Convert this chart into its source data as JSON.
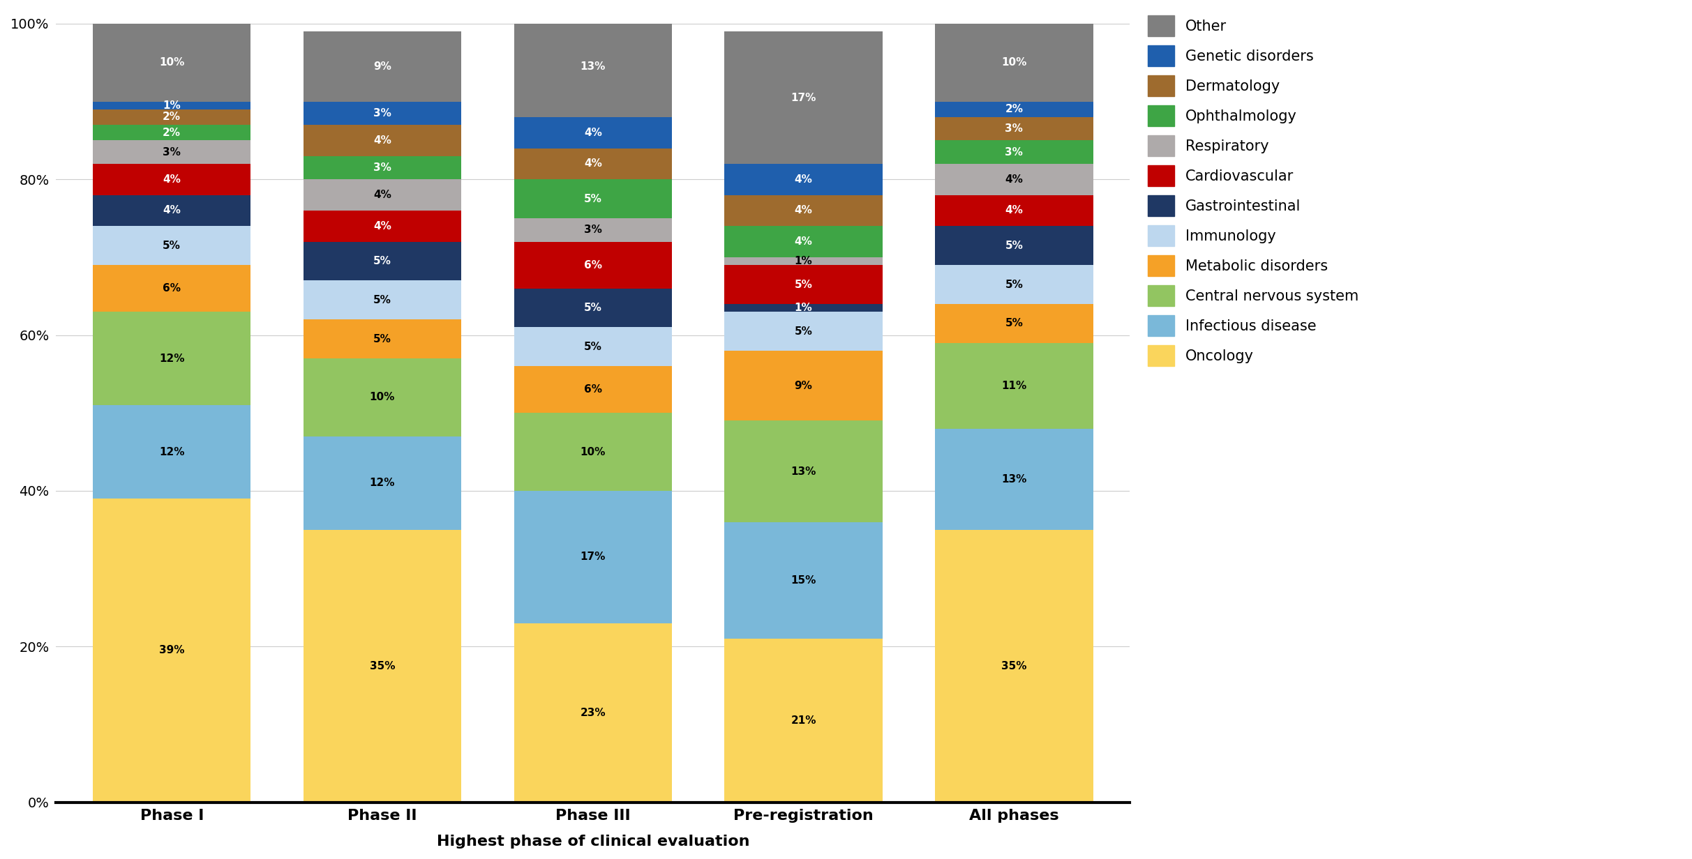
{
  "categories": [
    "Phase I",
    "Phase II",
    "Phase III",
    "Pre-registration",
    "All phases"
  ],
  "series": [
    {
      "label": "Oncology",
      "color": "#FAD55C",
      "values": [
        39,
        35,
        23,
        21,
        35
      ],
      "text_color": "#000000"
    },
    {
      "label": "Infectious disease",
      "color": "#7AB8D9",
      "values": [
        12,
        12,
        17,
        15,
        13
      ],
      "text_color": "#000000"
    },
    {
      "label": "Central nervous system",
      "color": "#92C561",
      "values": [
        12,
        10,
        10,
        13,
        11
      ],
      "text_color": "#000000"
    },
    {
      "label": "Metabolic disorders",
      "color": "#F5A127",
      "values": [
        6,
        5,
        6,
        9,
        5
      ],
      "text_color": "#000000"
    },
    {
      "label": "Immunology",
      "color": "#BDD7EE",
      "values": [
        5,
        5,
        5,
        5,
        5
      ],
      "text_color": "#000000"
    },
    {
      "label": "Gastrointestinal",
      "color": "#1F3864",
      "values": [
        4,
        5,
        5,
        1,
        5
      ],
      "text_color": "#FFFFFF"
    },
    {
      "label": "Cardiovascular",
      "color": "#C00000",
      "values": [
        4,
        4,
        6,
        5,
        4
      ],
      "text_color": "#FFFFFF"
    },
    {
      "label": "Respiratory",
      "color": "#AEAAAA",
      "values": [
        3,
        4,
        3,
        1,
        4
      ],
      "text_color": "#000000"
    },
    {
      "label": "Ophthalmology",
      "color": "#3EA545",
      "values": [
        2,
        3,
        5,
        4,
        3
      ],
      "text_color": "#FFFFFF"
    },
    {
      "label": "Dermatology",
      "color": "#9E6B2E",
      "values": [
        2,
        4,
        4,
        4,
        3
      ],
      "text_color": "#FFFFFF"
    },
    {
      "label": "Genetic disorders",
      "color": "#1F5FAD",
      "values": [
        1,
        3,
        4,
        4,
        2
      ],
      "text_color": "#FFFFFF"
    },
    {
      "label": "Other",
      "color": "#7F7F7F",
      "values": [
        10,
        9,
        13,
        17,
        10
      ],
      "text_color": "#FFFFFF"
    }
  ],
  "xlabel": "Highest phase of clinical evaluation",
  "yticks": [
    0,
    20,
    40,
    60,
    80,
    100
  ],
  "yticklabels": [
    "0%",
    "20%",
    "40%",
    "60%",
    "80%",
    "100%"
  ],
  "bar_width": 0.75,
  "figure_width": 24.25,
  "figure_height": 12.32,
  "dpi": 100,
  "background_color": "#FFFFFF"
}
